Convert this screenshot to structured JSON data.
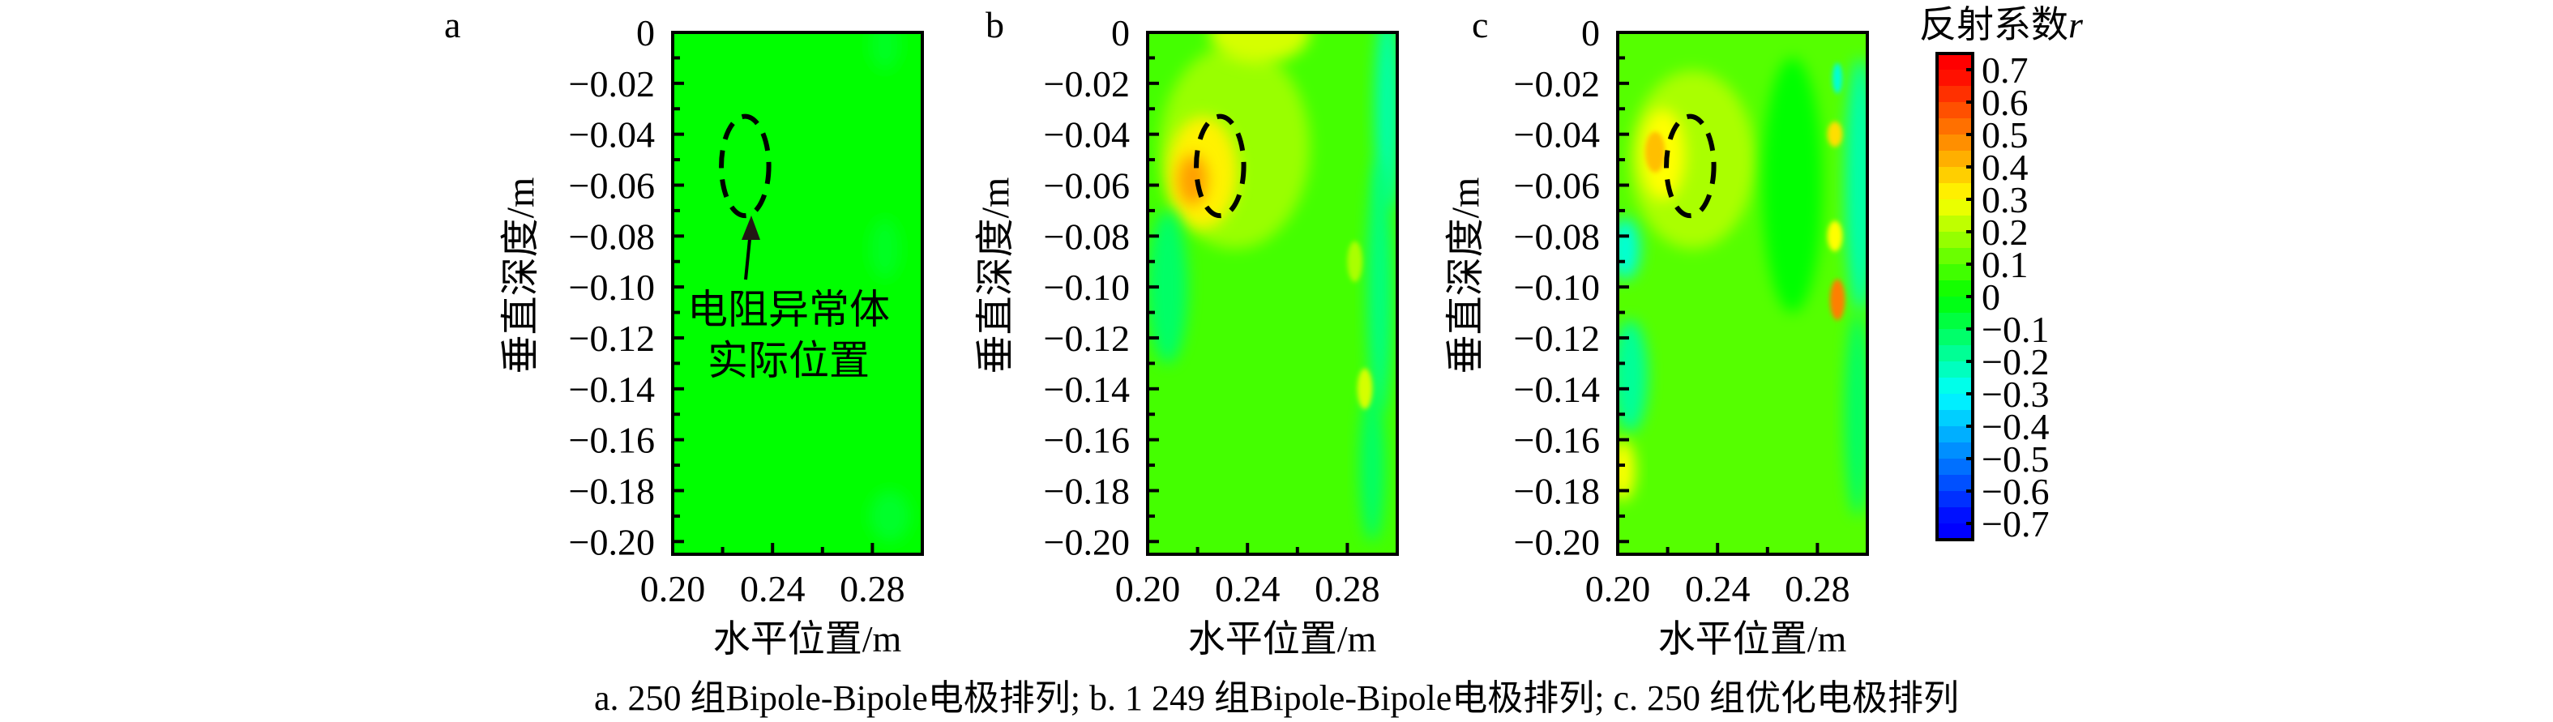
{
  "colorbar": {
    "title": "反射系数",
    "title_var": "r",
    "range": [
      -0.75,
      0.75
    ],
    "ticks": [
      0.7,
      0.6,
      0.5,
      0.4,
      0.3,
      0.2,
      0.1,
      0,
      -0.1,
      -0.2,
      -0.3,
      -0.4,
      -0.5,
      -0.6,
      -0.7
    ],
    "tick_labels": [
      "0.7",
      "0.6",
      "0.5",
      "0.4",
      "0.3",
      "0.2",
      "0.1",
      "0",
      "−0.1",
      "−0.2",
      "−0.3",
      "−0.4",
      "−0.5",
      "−0.6",
      "−0.7"
    ],
    "colormap_stops": [
      {
        "value": -0.7,
        "color": "#0000ff"
      },
      {
        "value": -0.3,
        "color": "#00ffff"
      },
      {
        "value": 0.0,
        "color": "#00ff00"
      },
      {
        "value": 0.3,
        "color": "#ffff00"
      },
      {
        "value": 0.7,
        "color": "#ff0000"
      }
    ]
  },
  "chart_data": [
    {
      "type": "heatmap",
      "panel_label": "a",
      "xlabel": "水平位置/m",
      "ylabel": "垂直深度/m",
      "xlim": [
        0.2,
        0.3
      ],
      "ylim": [
        -0.205,
        0
      ],
      "xticks": [
        0.2,
        0.24,
        0.28
      ],
      "xtick_labels": [
        "0.20",
        "0.24",
        "0.28"
      ],
      "yticks": [
        0,
        -0.02,
        -0.04,
        -0.06,
        -0.08,
        -0.1,
        -0.12,
        -0.14,
        -0.16,
        -0.18,
        -0.2
      ],
      "ytick_labels": [
        "0",
        "−0.02",
        "−0.04",
        "−0.06",
        "−0.08",
        "−0.10",
        "−0.12",
        "−0.14",
        "−0.16",
        "−0.18",
        "−0.20"
      ],
      "base_value": 0.0,
      "anomalies": [
        {
          "x": 0.285,
          "y": -0.005,
          "rx": 0.006,
          "ry": 0.01,
          "value": -0.04
        },
        {
          "x": 0.285,
          "y": -0.085,
          "rx": 0.006,
          "ry": 0.012,
          "value": -0.04
        },
        {
          "x": 0.287,
          "y": -0.19,
          "rx": 0.008,
          "ry": 0.01,
          "value": -0.05
        }
      ],
      "anomaly_outline": {
        "x": 0.229,
        "y": -0.0525,
        "rx": 0.0095,
        "ry": 0.0195
      },
      "annotation": [
        "电阻异常体",
        "实际位置"
      ]
    },
    {
      "type": "heatmap",
      "panel_label": "b",
      "xlabel": "水平位置/m",
      "ylabel": "垂直深度/m",
      "xlim": [
        0.2,
        0.3
      ],
      "ylim": [
        -0.205,
        0
      ],
      "xticks": [
        0.2,
        0.24,
        0.28
      ],
      "xtick_labels": [
        "0.20",
        "0.24",
        "0.28"
      ],
      "yticks": [
        0,
        -0.02,
        -0.04,
        -0.06,
        -0.08,
        -0.1,
        -0.12,
        -0.14,
        -0.16,
        -0.18,
        -0.2
      ],
      "ytick_labels": [
        "0",
        "−0.02",
        "−0.04",
        "−0.06",
        "−0.08",
        "−0.10",
        "−0.12",
        "−0.14",
        "−0.16",
        "−0.18",
        "−0.20"
      ],
      "base_value": 0.08,
      "anomalies": [
        {
          "x": 0.235,
          "y": -0.045,
          "rx": 0.03,
          "ry": 0.04,
          "value": 0.18
        },
        {
          "x": 0.245,
          "y": 0.0,
          "rx": 0.02,
          "ry": 0.012,
          "value": 0.25
        },
        {
          "x": 0.222,
          "y": -0.055,
          "rx": 0.014,
          "ry": 0.022,
          "value": 0.32
        },
        {
          "x": 0.218,
          "y": -0.058,
          "rx": 0.006,
          "ry": 0.01,
          "value": 0.45
        },
        {
          "x": 0.208,
          "y": -0.1,
          "rx": 0.008,
          "ry": 0.03,
          "value": -0.12
        },
        {
          "x": 0.296,
          "y": -0.03,
          "rx": 0.005,
          "ry": 0.04,
          "value": -0.2
        },
        {
          "x": 0.293,
          "y": -0.1,
          "rx": 0.005,
          "ry": 0.05,
          "value": -0.15
        },
        {
          "x": 0.29,
          "y": -0.17,
          "rx": 0.005,
          "ry": 0.03,
          "value": -0.12
        },
        {
          "x": 0.287,
          "y": -0.14,
          "rx": 0.003,
          "ry": 0.008,
          "value": 0.25
        },
        {
          "x": 0.283,
          "y": -0.09,
          "rx": 0.003,
          "ry": 0.008,
          "value": 0.2
        }
      ],
      "anomaly_outline": {
        "x": 0.229,
        "y": -0.0525,
        "rx": 0.0095,
        "ry": 0.0195
      }
    },
    {
      "type": "heatmap",
      "panel_label": "c",
      "xlabel": "水平位置/m",
      "ylabel": "垂直深度/m",
      "xlim": [
        0.2,
        0.3
      ],
      "ylim": [
        -0.205,
        0
      ],
      "xticks": [
        0.2,
        0.24,
        0.28
      ],
      "xtick_labels": [
        "0.20",
        "0.24",
        "0.28"
      ],
      "yticks": [
        0,
        -0.02,
        -0.04,
        -0.06,
        -0.08,
        -0.1,
        -0.12,
        -0.14,
        -0.16,
        -0.18,
        -0.2
      ],
      "ytick_labels": [
        "0",
        "−0.02",
        "−0.04",
        "−0.06",
        "−0.08",
        "−0.10",
        "−0.12",
        "−0.14",
        "−0.16",
        "−0.18",
        "−0.20"
      ],
      "base_value": 0.1,
      "anomalies": [
        {
          "x": 0.23,
          "y": -0.05,
          "rx": 0.025,
          "ry": 0.035,
          "value": 0.2
        },
        {
          "x": 0.218,
          "y": -0.048,
          "rx": 0.009,
          "ry": 0.018,
          "value": 0.3
        },
        {
          "x": 0.215,
          "y": -0.047,
          "rx": 0.004,
          "ry": 0.008,
          "value": 0.4
        },
        {
          "x": 0.203,
          "y": -0.085,
          "rx": 0.006,
          "ry": 0.012,
          "value": -0.25
        },
        {
          "x": 0.205,
          "y": -0.135,
          "rx": 0.007,
          "ry": 0.022,
          "value": -0.18
        },
        {
          "x": 0.202,
          "y": -0.172,
          "rx": 0.005,
          "ry": 0.012,
          "value": 0.3
        },
        {
          "x": 0.297,
          "y": -0.06,
          "rx": 0.006,
          "ry": 0.05,
          "value": -0.2
        },
        {
          "x": 0.296,
          "y": -0.15,
          "rx": 0.005,
          "ry": 0.04,
          "value": -0.12
        },
        {
          "x": 0.27,
          "y": -0.06,
          "rx": 0.012,
          "ry": 0.05,
          "value": 0.0
        },
        {
          "x": 0.288,
          "y": -0.105,
          "rx": 0.003,
          "ry": 0.008,
          "value": 0.5
        },
        {
          "x": 0.287,
          "y": -0.04,
          "rx": 0.003,
          "ry": 0.005,
          "value": 0.35
        },
        {
          "x": 0.287,
          "y": -0.08,
          "rx": 0.003,
          "ry": 0.006,
          "value": 0.3
        },
        {
          "x": 0.288,
          "y": -0.018,
          "rx": 0.002,
          "ry": 0.006,
          "value": -0.25
        }
      ],
      "anomaly_outline": {
        "x": 0.229,
        "y": -0.0525,
        "rx": 0.0095,
        "ry": 0.0195
      }
    }
  ],
  "caption": "a. 250 组Bipole-Bipole电极排列; b. 1 249 组Bipole-Bipole电极排列; c. 250 组优化电极排列"
}
